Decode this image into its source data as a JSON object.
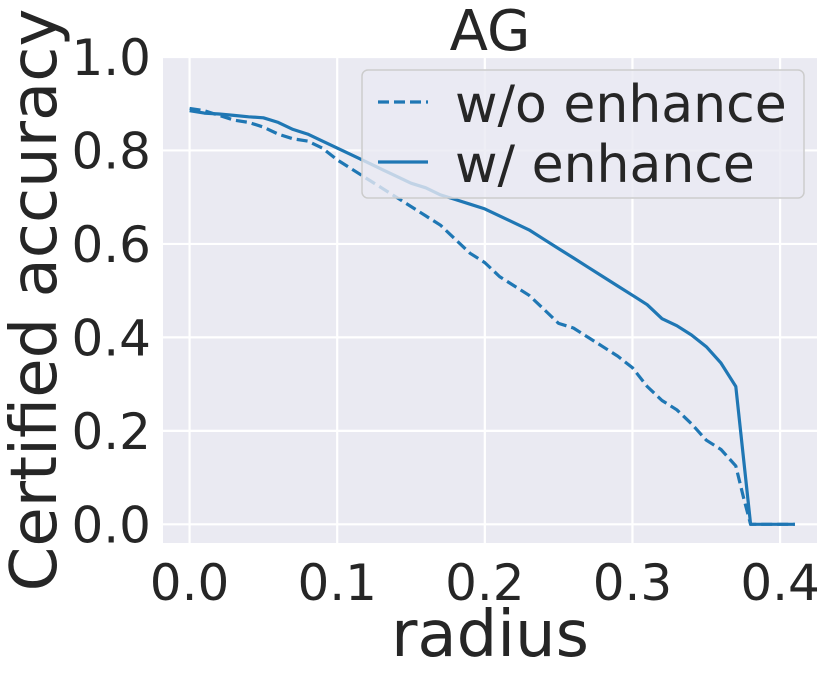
{
  "chart_data": {
    "type": "line",
    "title": "AG",
    "xlabel": "radius",
    "ylabel": "Certified accuracy",
    "xlim": [
      -0.018,
      0.425
    ],
    "ylim": [
      -0.04,
      1.0
    ],
    "xticks": [
      0.0,
      0.1,
      0.2,
      0.3,
      0.4
    ],
    "yticks": [
      0.0,
      0.2,
      0.4,
      0.6,
      0.8,
      1.0
    ],
    "xtick_labels": [
      "0.0",
      "0.1",
      "0.2",
      "0.3",
      "0.4"
    ],
    "ytick_labels": [
      "0.0",
      "0.2",
      "0.4",
      "0.6",
      "0.8",
      "1.0"
    ],
    "grid": true,
    "legend_position": "top-right",
    "background_color": "#eaeaf2",
    "series": [
      {
        "name": "w/o enhance",
        "style": "dashed",
        "color": "#1f77b4",
        "x": [
          0.0,
          0.01,
          0.02,
          0.03,
          0.04,
          0.05,
          0.06,
          0.07,
          0.08,
          0.09,
          0.1,
          0.11,
          0.12,
          0.13,
          0.14,
          0.15,
          0.16,
          0.17,
          0.18,
          0.19,
          0.2,
          0.21,
          0.22,
          0.23,
          0.24,
          0.25,
          0.26,
          0.27,
          0.28,
          0.29,
          0.3,
          0.31,
          0.32,
          0.33,
          0.34,
          0.35,
          0.36,
          0.37,
          0.375,
          0.38,
          0.39,
          0.4,
          0.41
        ],
        "y": [
          0.89,
          0.885,
          0.875,
          0.865,
          0.86,
          0.85,
          0.835,
          0.825,
          0.82,
          0.805,
          0.78,
          0.76,
          0.74,
          0.72,
          0.7,
          0.68,
          0.66,
          0.64,
          0.61,
          0.58,
          0.56,
          0.53,
          0.51,
          0.49,
          0.46,
          0.43,
          0.42,
          0.4,
          0.38,
          0.36,
          0.335,
          0.295,
          0.265,
          0.245,
          0.215,
          0.18,
          0.16,
          0.125,
          0.06,
          0.0,
          0.0,
          0.0,
          0.0
        ]
      },
      {
        "name": "w/ enhance",
        "style": "solid",
        "color": "#1f77b4",
        "x": [
          0.0,
          0.01,
          0.02,
          0.03,
          0.04,
          0.05,
          0.06,
          0.07,
          0.08,
          0.09,
          0.1,
          0.11,
          0.12,
          0.13,
          0.14,
          0.15,
          0.16,
          0.17,
          0.18,
          0.19,
          0.2,
          0.21,
          0.22,
          0.23,
          0.24,
          0.25,
          0.26,
          0.27,
          0.28,
          0.29,
          0.3,
          0.31,
          0.32,
          0.33,
          0.34,
          0.35,
          0.36,
          0.37,
          0.38,
          0.39,
          0.4,
          0.41
        ],
        "y": [
          0.885,
          0.88,
          0.878,
          0.875,
          0.872,
          0.87,
          0.86,
          0.845,
          0.835,
          0.82,
          0.805,
          0.79,
          0.775,
          0.76,
          0.745,
          0.73,
          0.72,
          0.705,
          0.695,
          0.685,
          0.675,
          0.66,
          0.645,
          0.63,
          0.61,
          0.59,
          0.57,
          0.55,
          0.53,
          0.51,
          0.49,
          0.47,
          0.44,
          0.425,
          0.405,
          0.38,
          0.345,
          0.295,
          0.0,
          0.0,
          0.0,
          0.0
        ]
      }
    ]
  }
}
